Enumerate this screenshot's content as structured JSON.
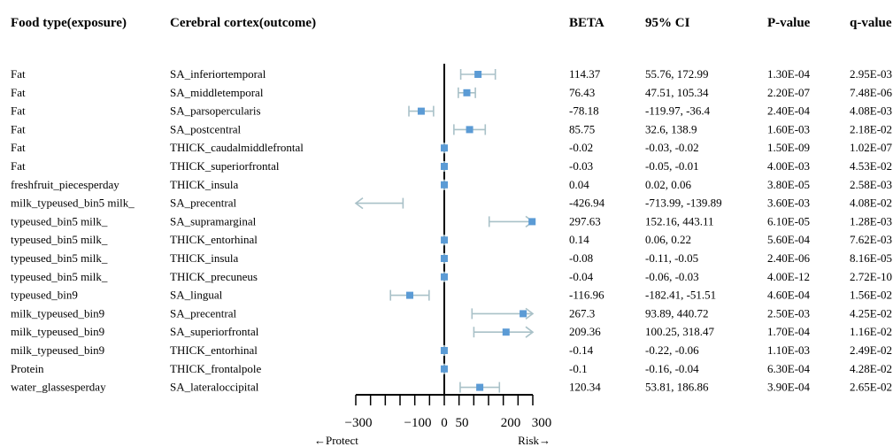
{
  "headers": {
    "exposure": "Food type(exposure)",
    "outcome": "Cerebral cortex(outcome)",
    "beta": "BETA",
    "ci": "95% CI",
    "p": "P-value",
    "q": "q-value"
  },
  "colors": {
    "marker": "#5b9bd5",
    "ci_line": "#a9c1c8",
    "axis": "#000000"
  },
  "chart_data": {
    "type": "forest",
    "xlim": [
      -300,
      300
    ],
    "x_clip": [
      -300,
      300
    ],
    "reference_line": 0,
    "tick_labels": [
      "−300",
      "−100",
      "0",
      "50",
      "200",
      "300"
    ],
    "tick_values": [
      -300,
      -100,
      0,
      50,
      200,
      300
    ],
    "minor_ticks": [
      -300,
      -250,
      -200,
      -150,
      -100,
      -50,
      0,
      50,
      100,
      150,
      200,
      250,
      300
    ],
    "xlabel_left": "←Protect",
    "xlabel_right": "Risk→",
    "rows": [
      {
        "exposure": "Fat",
        "outcome": "SA_inferiortemporal",
        "beta": 114.37,
        "lo": 55.76,
        "hi": 172.99,
        "beta_text": "114.37",
        "ci_text": "55.76, 172.99",
        "p": "1.30E-04",
        "q": "2.95E-03"
      },
      {
        "exposure": "Fat",
        "outcome": "SA_middletemporal",
        "beta": 76.43,
        "lo": 47.51,
        "hi": 105.34,
        "beta_text": "76.43",
        "ci_text": "47.51, 105.34",
        "p": "2.20E-07",
        "q": "7.48E-06"
      },
      {
        "exposure": "Fat",
        "outcome": "SA_parsopercularis",
        "beta": -78.18,
        "lo": -119.97,
        "hi": -36.4,
        "beta_text": "-78.18",
        "ci_text": "-119.97, -36.4",
        "p": "2.40E-04",
        "q": "4.08E-03"
      },
      {
        "exposure": "Fat",
        "outcome": "SA_postcentral",
        "beta": 85.75,
        "lo": 32.6,
        "hi": 138.9,
        "beta_text": "85.75",
        "ci_text": "32.6, 138.9",
        "p": "1.60E-03",
        "q": "2.18E-02"
      },
      {
        "exposure": "Fat",
        "outcome": "THICK_caudalmiddlefrontal",
        "beta": -0.02,
        "lo": -0.03,
        "hi": -0.02,
        "beta_text": "-0.02",
        "ci_text": "-0.03, -0.02",
        "p": "1.50E-09",
        "q": "1.02E-07"
      },
      {
        "exposure": "Fat",
        "outcome": "THICK_superiorfrontal",
        "beta": -0.03,
        "lo": -0.05,
        "hi": -0.01,
        "beta_text": "-0.03",
        "ci_text": "-0.05, -0.01",
        "p": "4.00E-03",
        "q": "4.53E-02"
      },
      {
        "exposure": "freshfruit_piecesperday",
        "outcome": "THICK_insula",
        "beta": 0.04,
        "lo": 0.02,
        "hi": 0.06,
        "beta_text": "0.04",
        "ci_text": "0.02, 0.06",
        "p": "3.80E-05",
        "q": "2.58E-03"
      },
      {
        "exposure": "milk_typeused_bin5 milk_",
        "outcome": "SA_precentral",
        "beta": -426.94,
        "lo": -713.99,
        "hi": -139.89,
        "beta_text": "-426.94",
        "ci_text": "-713.99, -139.89",
        "p": "3.60E-03",
        "q": "4.08E-02"
      },
      {
        "exposure": "typeused_bin5 milk_",
        "outcome": "SA_supramarginal",
        "beta": 297.63,
        "lo": 152.16,
        "hi": 443.11,
        "beta_text": "297.63",
        "ci_text": "152.16, 443.11",
        "p": "6.10E-05",
        "q": "1.28E-03"
      },
      {
        "exposure": "typeused_bin5 milk_",
        "outcome": "THICK_entorhinal",
        "beta": 0.14,
        "lo": 0.06,
        "hi": 0.22,
        "beta_text": "0.14",
        "ci_text": "0.06, 0.22",
        "p": "5.60E-04",
        "q": "7.62E-03"
      },
      {
        "exposure": "typeused_bin5 milk_",
        "outcome": "THICK_insula",
        "beta": -0.08,
        "lo": -0.11,
        "hi": -0.05,
        "beta_text": "-0.08",
        "ci_text": "-0.11, -0.05",
        "p": "2.40E-06",
        "q": "8.16E-05"
      },
      {
        "exposure": "typeused_bin5 milk_",
        "outcome": "THICK_precuneus",
        "beta": -0.04,
        "lo": -0.06,
        "hi": -0.03,
        "beta_text": "-0.04",
        "ci_text": "-0.06, -0.03",
        "p": "4.00E-12",
        "q": "2.72E-10"
      },
      {
        "exposure": "typeused_bin9",
        "outcome": "SA_lingual",
        "beta": -116.96,
        "lo": -182.41,
        "hi": -51.51,
        "beta_text": "-116.96",
        "ci_text": "-182.41, -51.51",
        "p": "4.60E-04",
        "q": "1.56E-02"
      },
      {
        "exposure": "milk_typeused_bin9",
        "outcome": "SA_precentral",
        "beta": 267.3,
        "lo": 93.89,
        "hi": 440.72,
        "beta_text": "267.3",
        "ci_text": "93.89, 440.72",
        "p": "2.50E-03",
        "q": "4.25E-02"
      },
      {
        "exposure": "milk_typeused_bin9",
        "outcome": "SA_superiorfrontal",
        "beta": 209.36,
        "lo": 100.25,
        "hi": 318.47,
        "beta_text": "209.36",
        "ci_text": "100.25, 318.47",
        "p": "1.70E-04",
        "q": "1.16E-02"
      },
      {
        "exposure": "milk_typeused_bin9",
        "outcome": "THICK_entorhinal",
        "beta": -0.14,
        "lo": -0.22,
        "hi": -0.06,
        "beta_text": "-0.14",
        "ci_text": "-0.22, -0.06",
        "p": "1.10E-03",
        "q": "2.49E-02"
      },
      {
        "exposure": "Protein",
        "outcome": "THICK_frontalpole",
        "beta": -0.1,
        "lo": -0.16,
        "hi": -0.04,
        "beta_text": "-0.1",
        "ci_text": "-0.16, -0.04",
        "p": "6.30E-04",
        "q": "4.28E-02"
      },
      {
        "exposure": "water_glassesperday",
        "outcome": "SA_lateraloccipital",
        "beta": 120.34,
        "lo": 53.81,
        "hi": 186.86,
        "beta_text": "120.34",
        "ci_text": "53.81, 186.86",
        "p": "3.90E-04",
        "q": "2.65E-02"
      }
    ]
  }
}
